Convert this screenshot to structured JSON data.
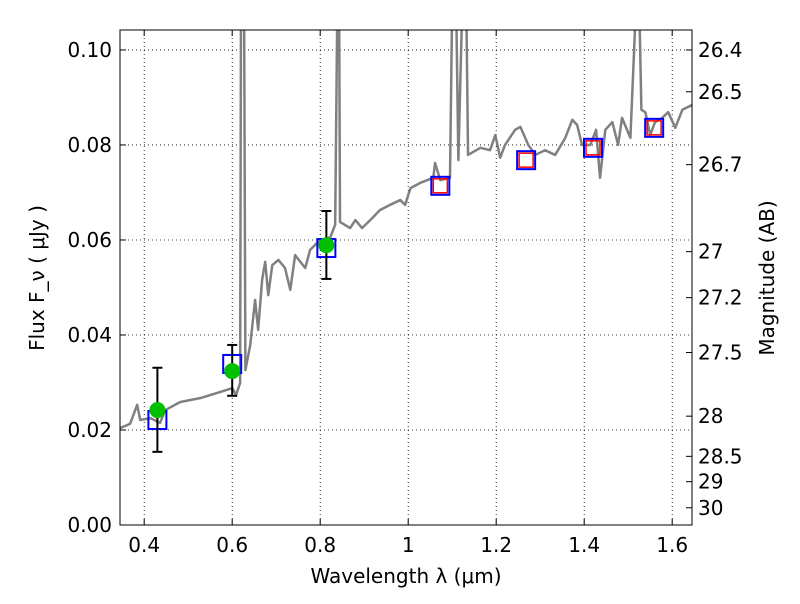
{
  "chart_data": {
    "type": "line",
    "title": "",
    "xlabel": "Wavelength  λ (μm)",
    "ylabel": "Flux  F_ν  ( μJy )",
    "ylabel_right": "Magnitude (AB)",
    "xlim": [
      0.345,
      1.645
    ],
    "ylim": [
      0,
      0.1042
    ],
    "grid": true,
    "x_ticks": [
      0.4,
      0.6,
      0.8,
      1.0,
      1.2,
      1.4,
      1.6
    ],
    "x_tick_labels": [
      "0.4",
      "0.6",
      "0.8",
      "1",
      "1.2",
      "1.4",
      "1.6"
    ],
    "y_ticks": [
      0.0,
      0.02,
      0.04,
      0.06,
      0.08,
      0.1
    ],
    "y_tick_labels": [
      "0.00",
      "0.02",
      "0.04",
      "0.06",
      "0.08",
      "0.10"
    ],
    "right_ticks": [
      26.4,
      26.5,
      26.7,
      27,
      27.2,
      27.5,
      28,
      28.5,
      29,
      30
    ],
    "right_tick_labels": [
      "26.4",
      "26.5",
      "26.7",
      "27",
      "27.2",
      "27.5",
      "28",
      "28.5",
      "29",
      "30"
    ],
    "colors": {
      "spectrum": "#808080",
      "observed": "#00c000",
      "model_blue": "#0000ff",
      "model_red": "#ff0000",
      "errorbar": "#000000"
    },
    "series": [
      {
        "name": "spectrum",
        "type": "line",
        "x": [
          0.345,
          0.368,
          0.384,
          0.391,
          0.414,
          0.436,
          0.448,
          0.482,
          0.527,
          0.573,
          0.6,
          0.609,
          0.618,
          0.62,
          0.627,
          0.63,
          0.641,
          0.652,
          0.659,
          0.668,
          0.675,
          0.682,
          0.691,
          0.705,
          0.72,
          0.732,
          0.743,
          0.766,
          0.777,
          0.795,
          0.823,
          0.834,
          0.839,
          0.843,
          0.845,
          0.868,
          0.88,
          0.895,
          0.914,
          0.936,
          0.959,
          0.982,
          0.993,
          1.005,
          1.027,
          1.057,
          1.061,
          1.073,
          1.095,
          1.1,
          1.109,
          1.114,
          1.123,
          1.132,
          1.136,
          1.164,
          1.186,
          1.198,
          1.209,
          1.22,
          1.243,
          1.255,
          1.273,
          1.289,
          1.311,
          1.334,
          1.357,
          1.373,
          1.384,
          1.395,
          1.414,
          1.427,
          1.436,
          1.448,
          1.464,
          1.477,
          1.486,
          1.505,
          1.518,
          1.525,
          1.53,
          1.539,
          1.55,
          1.561,
          1.577,
          1.591,
          1.607,
          1.623,
          1.645
        ],
        "y": [
          0.0204,
          0.0213,
          0.0253,
          0.0221,
          0.0225,
          0.0215,
          0.0242,
          0.0259,
          0.0267,
          0.028,
          0.0288,
          0.0274,
          0.0299,
          0.11,
          0.11,
          0.0326,
          0.0379,
          0.0474,
          0.0411,
          0.0516,
          0.0554,
          0.0484,
          0.0547,
          0.0558,
          0.0541,
          0.0495,
          0.0568,
          0.0541,
          0.0579,
          0.0596,
          0.0606,
          0.0632,
          0.11,
          0.11,
          0.0638,
          0.0625,
          0.0642,
          0.0625,
          0.0642,
          0.0663,
          0.0674,
          0.0684,
          0.0674,
          0.0709,
          0.072,
          0.0731,
          0.0762,
          0.0726,
          0.0731,
          0.11,
          0.11,
          0.0768,
          0.11,
          0.11,
          0.0779,
          0.0794,
          0.0789,
          0.0821,
          0.0773,
          0.08,
          0.0832,
          0.0838,
          0.08,
          0.0779,
          0.0789,
          0.0779,
          0.0815,
          0.0853,
          0.0842,
          0.08,
          0.08,
          0.0832,
          0.0731,
          0.0832,
          0.0848,
          0.08,
          0.0857,
          0.0815,
          0.11,
          0.11,
          0.0874,
          0.0869,
          0.0821,
          0.0848,
          0.0857,
          0.0869,
          0.0836,
          0.0874,
          0.0884
        ]
      },
      {
        "name": "observed",
        "type": "scatter",
        "x": [
          0.43,
          0.6,
          0.814
        ],
        "y": [
          0.0242,
          0.0324,
          0.0589
        ],
        "yerr_low": [
          0.0154,
          0.0272,
          0.0518
        ],
        "yerr_high": [
          0.0331,
          0.0379,
          0.0661
        ]
      },
      {
        "name": "model_blue",
        "type": "scatter",
        "x": [
          0.43,
          0.6,
          0.814,
          1.073,
          1.268,
          1.42,
          1.559
        ],
        "y": [
          0.0221,
          0.0339,
          0.0583,
          0.0714,
          0.0768,
          0.0794,
          0.0836
        ]
      },
      {
        "name": "model_red",
        "type": "scatter",
        "x": [
          1.073,
          1.268,
          1.42,
          1.559
        ],
        "y": [
          0.0714,
          0.0768,
          0.0794,
          0.0836
        ]
      }
    ]
  }
}
